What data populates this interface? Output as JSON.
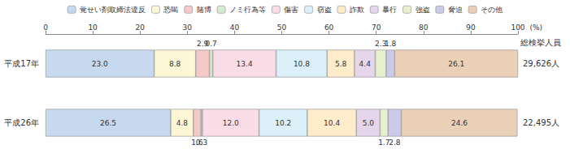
{
  "chart_data": {
    "type": "bar",
    "orientation": "horizontal",
    "stacked": true,
    "data_labels": true,
    "grid": false,
    "legend": "top",
    "categories": [
      "平成17年",
      "平成26年"
    ],
    "x_label": "(%)",
    "xlim": [
      0,
      100
    ],
    "xticks": [
      0,
      10,
      20,
      30,
      40,
      50,
      60,
      70,
      80,
      90,
      100
    ],
    "totals_title": "総検挙人員",
    "totals": [
      "29,626人",
      "22,495人"
    ],
    "series": [
      {
        "name": "覚せい剤取締法違反",
        "color": "#c6d9ee",
        "values": [
          23.0,
          26.5
        ],
        "value_labels": [
          "23.0",
          "26.5"
        ]
      },
      {
        "name": "恐喝",
        "color": "#fdf7d6",
        "values": [
          8.8,
          4.8
        ],
        "value_labels": [
          "8.8",
          "4.8"
        ]
      },
      {
        "name": "賭博",
        "color": "#f6c9c9",
        "values": [
          2.9,
          1.6
        ],
        "value_labels": [
          "2.9",
          "1.6"
        ]
      },
      {
        "name": "ノミ行為等",
        "color": "#d6ecd2",
        "values": [
          0.7,
          0.3
        ],
        "value_labels": [
          "0.7",
          "0.3"
        ]
      },
      {
        "name": "傷害",
        "color": "#fadde7",
        "values": [
          13.4,
          12.0
        ],
        "value_labels": [
          "13.4",
          "12.0"
        ]
      },
      {
        "name": "窃盗",
        "color": "#dcf0fa",
        "values": [
          10.8,
          10.2
        ],
        "value_labels": [
          "10.8",
          "10.2"
        ]
      },
      {
        "name": "詐欺",
        "color": "#feeccb",
        "values": [
          5.8,
          10.4
        ],
        "value_labels": [
          "5.8",
          "10.4"
        ]
      },
      {
        "name": "暴行",
        "color": "#e6d6ec",
        "values": [
          4.4,
          5.0
        ],
        "value_labels": [
          "4.4",
          "5.0"
        ]
      },
      {
        "name": "強盗",
        "color": "#e8f0cf",
        "values": [
          2.3,
          1.7
        ],
        "value_labels": [
          "2.3",
          "1.7"
        ]
      },
      {
        "name": "脅迫",
        "color": "#cbcbe8",
        "values": [
          1.8,
          2.8
        ],
        "value_labels": [
          "1.8",
          "2.8"
        ]
      },
      {
        "name": "その他",
        "color": "#ebd0b8",
        "values": [
          26.1,
          24.6
        ],
        "value_labels": [
          "26.1",
          "24.6"
        ]
      }
    ]
  }
}
